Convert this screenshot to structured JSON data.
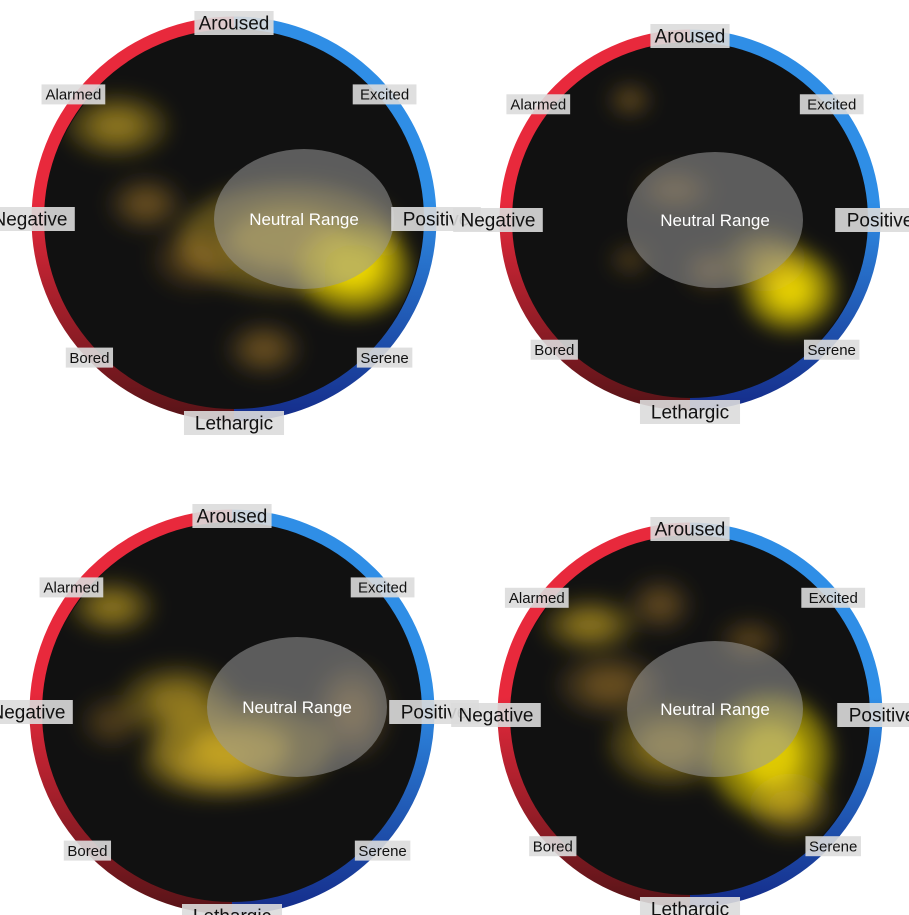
{
  "labels": {
    "aroused": "Aroused",
    "excited": "Excited",
    "positive": "Positive",
    "serene": "Serene",
    "lethargic": "Lethargic",
    "bored": "Bored",
    "negative": "Negative",
    "alarmed": "Alarmed",
    "neutral": "Neutral Range"
  },
  "colors": {
    "disc": "#111111",
    "ring_red_top": "#e8293c",
    "ring_red_bottom": "#5a1418",
    "ring_blue_top": "#2f8ee6",
    "ring_blue_bottom": "#152e8c",
    "hot_spot": "#ffe700",
    "warm_spot": "#b8862c",
    "neutral_fill": "#9a9a9a",
    "label_bg": "#dcdcdc"
  },
  "panels": [
    {
      "id": "top-left"
    },
    {
      "id": "top-right"
    },
    {
      "id": "bottom-left"
    },
    {
      "id": "bottom-right"
    }
  ]
}
